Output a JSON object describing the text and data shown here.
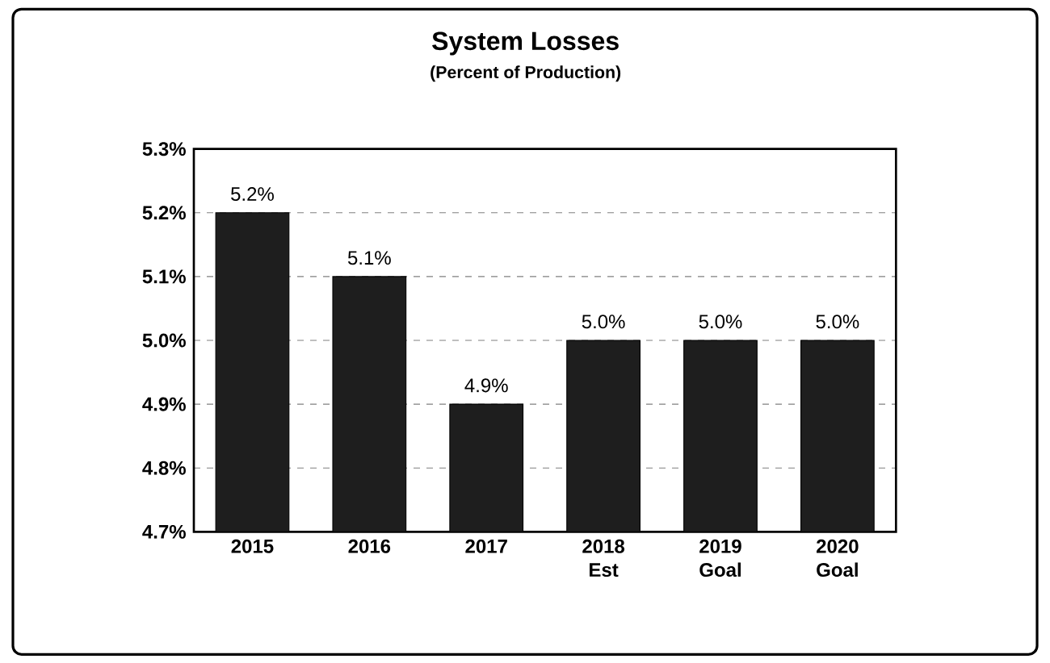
{
  "chart_data": {
    "type": "bar",
    "title": "System Losses",
    "subtitle": "(Percent of Production)",
    "categories": [
      "2015",
      "2016",
      "2017",
      "2018 Est",
      "2019 Goal",
      "2020 Goal"
    ],
    "values": [
      5.2,
      5.1,
      4.9,
      5.0,
      5.0,
      5.0
    ],
    "value_labels": [
      "5.2%",
      "5.1%",
      "4.9%",
      "5.0%",
      "5.0%",
      "5.0%"
    ],
    "color": "#1e1e1e",
    "ylim": [
      4.7,
      5.3
    ],
    "yticks": [
      {
        "value": 4.7,
        "label": "4.7%"
      },
      {
        "value": 4.8,
        "label": "4.8%"
      },
      {
        "value": 4.9,
        "label": "4.9%"
      },
      {
        "value": 5.0,
        "label": "5.0%"
      },
      {
        "value": 5.1,
        "label": "5.1%"
      },
      {
        "value": 5.2,
        "label": "5.2%"
      },
      {
        "value": 5.3,
        "label": "5.3%"
      }
    ],
    "grid": "y"
  }
}
